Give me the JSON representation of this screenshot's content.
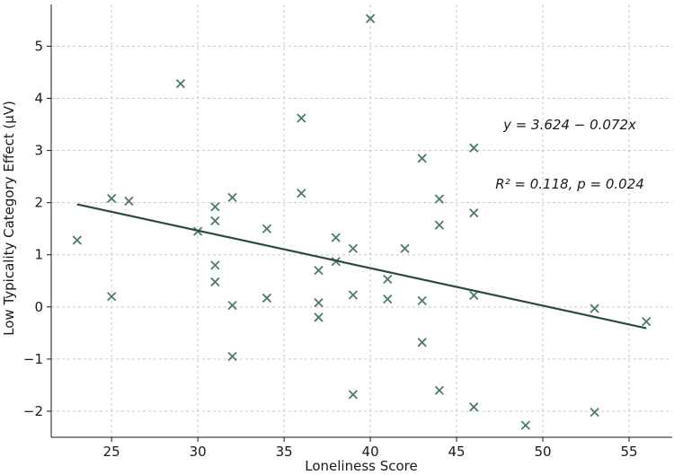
{
  "chart_data": {
    "type": "scatter",
    "xlabel": "Loneliness Score",
    "ylabel": "Low Typicality Category Effect (μV)",
    "xlim": [
      21.5,
      57.5
    ],
    "ylim": [
      -2.5,
      5.8
    ],
    "grid": true,
    "x_ticks": [
      25,
      30,
      35,
      40,
      45,
      50,
      55
    ],
    "y_ticks": [
      -2,
      -1,
      0,
      1,
      2,
      3,
      4,
      5
    ],
    "x_tick_labels": [
      "25",
      "30",
      "35",
      "40",
      "45",
      "50",
      "55"
    ],
    "y_tick_labels": [
      "−2",
      "−1",
      "0",
      "1",
      "2",
      "3",
      "4",
      "5"
    ],
    "points": [
      [
        23,
        1.28
      ],
      [
        25,
        2.08
      ],
      [
        25,
        0.2
      ],
      [
        26,
        2.03
      ],
      [
        29,
        4.28
      ],
      [
        30,
        1.45
      ],
      [
        31,
        1.92
      ],
      [
        31,
        1.65
      ],
      [
        31,
        0.8
      ],
      [
        31,
        0.48
      ],
      [
        32,
        2.1
      ],
      [
        32,
        0.03
      ],
      [
        32,
        -0.95
      ],
      [
        34,
        1.5
      ],
      [
        34,
        0.17
      ],
      [
        36,
        3.62
      ],
      [
        36,
        2.18
      ],
      [
        37,
        0.7
      ],
      [
        37,
        0.08
      ],
      [
        37,
        -0.2
      ],
      [
        38,
        1.33
      ],
      [
        38,
        0.87
      ],
      [
        39,
        1.12
      ],
      [
        39,
        0.23
      ],
      [
        39,
        -1.68
      ],
      [
        40,
        5.53
      ],
      [
        41,
        0.53
      ],
      [
        41,
        0.15
      ],
      [
        42,
        1.12
      ],
      [
        43,
        2.85
      ],
      [
        43,
        0.12
      ],
      [
        43,
        -0.68
      ],
      [
        44,
        2.07
      ],
      [
        44,
        1.57
      ],
      [
        44,
        -1.6
      ],
      [
        46,
        3.05
      ],
      [
        46,
        1.8
      ],
      [
        46,
        0.22
      ],
      [
        46,
        -1.92
      ],
      [
        49,
        -2.27
      ],
      [
        53,
        -0.03
      ],
      [
        53,
        -2.02
      ],
      [
        56,
        -0.28
      ]
    ],
    "regression": {
      "intercept": 3.624,
      "slope": -0.072,
      "x_start": 23,
      "x_end": 56
    },
    "annotations": {
      "equation": "y = 3.624 − 0.072x",
      "stats": "R² = 0.118,  p = 0.024"
    },
    "colors": {
      "marker": "#4f7a67",
      "line": "#2d4a3c"
    }
  }
}
